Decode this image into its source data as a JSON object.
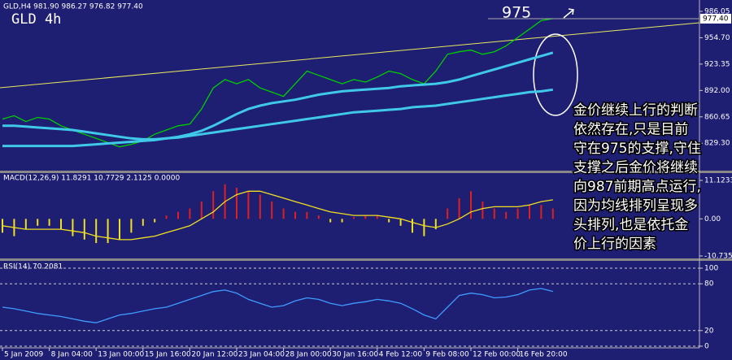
{
  "chart_data": [
    {
      "type": "line",
      "header": "GLD,H4  981.90 986.27 976.82 977.40",
      "title": "GLD 4h",
      "annotation": "975",
      "note_lines": [
        "金价继续上行的判断",
        "依然存在,只是目前",
        "守在975的支撑,守住",
        "支撑之后金价将继续",
        "向987前期高点运行,",
        "因为均线排列呈现多",
        "头排列,也是依托金",
        "价上行的因素"
      ],
      "ylim": [
        798.6,
        995.7
      ],
      "yticks": [
        986.05,
        {
          "value": 954.7,
          "label": "954.70"
        },
        923.35,
        {
          "value": 892,
          "label": "892.00"
        },
        860.65,
        {
          "value": 829.3,
          "label": "829.30"
        }
      ],
      "current_price": {
        "value": 977.4,
        "label": "977.40"
      },
      "grid": false,
      "series": [
        {
          "color": "#00d000",
          "values": [
            858,
            862,
            855,
            860,
            858,
            850,
            845,
            840,
            835,
            830,
            825,
            828,
            832,
            840,
            845,
            850,
            852,
            870,
            895,
            905,
            900,
            905,
            895,
            890,
            885,
            900,
            915,
            910,
            905,
            900,
            905,
            902,
            908,
            915,
            912,
            905,
            900,
            915,
            935,
            938,
            940,
            935,
            938,
            945,
            955,
            965,
            975,
            977.4
          ]
        },
        {
          "color": "#40c8e8",
          "values": [
            850,
            850,
            849,
            848,
            847,
            846,
            845,
            843,
            841,
            839,
            837,
            835,
            834,
            834,
            835,
            837,
            840,
            844,
            850,
            857,
            864,
            870,
            874,
            877,
            879,
            881,
            884,
            887,
            889,
            891,
            892,
            893,
            894,
            895,
            897,
            898,
            899,
            900,
            902,
            905,
            909,
            913,
            917,
            921,
            925,
            929,
            933,
            937
          ]
        },
        {
          "color": "#40c8e8",
          "values": [
            826,
            826,
            826,
            826,
            826,
            826,
            826,
            827,
            828,
            829,
            830,
            831,
            832,
            833,
            835,
            836,
            838,
            840,
            842,
            844,
            846,
            848,
            850,
            852,
            854,
            856,
            858,
            860,
            862,
            864,
            866,
            867,
            868,
            869,
            870,
            872,
            873,
            874,
            876,
            878,
            880,
            882,
            884,
            886,
            888,
            890,
            891,
            893
          ]
        }
      ]
    },
    {
      "type": "bar",
      "header": "MACD(12,26,9) 11.8291 10.7729 2.1125 0.0000",
      "ylim": [
        -10.7357,
        11.1233
      ],
      "yticks": [
        11.1233,
        {
          "value": 0,
          "label": "0.00"
        },
        -10.7357
      ],
      "positive_color": "#e02020",
      "negative_color": "#f0e020",
      "values": [
        -4,
        -5,
        -3,
        -2,
        -2,
        -3,
        -5,
        -6,
        -7,
        -7,
        -6,
        -4,
        -2,
        -1,
        1,
        2,
        3,
        5,
        8,
        10,
        9,
        8,
        7,
        5,
        3,
        2,
        2,
        1,
        -1,
        -1,
        0.5,
        1,
        1,
        -1,
        -2,
        -4,
        -5,
        -3,
        3,
        6,
        8,
        5,
        3,
        2,
        3,
        4,
        4,
        3
      ],
      "signal": {
        "color": "#f0e020",
        "values": [
          -2,
          -2.5,
          -3,
          -3,
          -3,
          -3,
          -3.5,
          -4,
          -5,
          -5.5,
          -6,
          -6,
          -5.5,
          -5,
          -4,
          -3,
          -2,
          0,
          2,
          5,
          7,
          8,
          8,
          7,
          6,
          5,
          4,
          3,
          2,
          1.5,
          1,
          1,
          1,
          0.5,
          0,
          -1,
          -2,
          -2.5,
          -1.5,
          0,
          2,
          3,
          3.5,
          3.5,
          3.5,
          4,
          5,
          5.5
        ]
      }
    },
    {
      "type": "line",
      "header": "RSI(14) 70.2081",
      "ylim": [
        0,
        100
      ],
      "yticks": [
        100,
        80,
        20,
        0
      ],
      "grid": true,
      "categories": [
        "5 Jan 2009",
        null,
        null,
        null,
        "8 Jan 04:00",
        null,
        null,
        null,
        "13 Jan 00:00",
        null,
        null,
        null,
        "15 Jan 16:00",
        null,
        null,
        null,
        "20 Jan 12:00",
        null,
        null,
        null,
        "23 Jan 04:00",
        null,
        null,
        null,
        "28 Jan 00:00",
        null,
        null,
        null,
        "30 Jan 16:00",
        null,
        null,
        null,
        "4 Feb 12:00",
        null,
        null,
        null,
        "9 Feb 08:00",
        null,
        null,
        null,
        "12 Feb 00:00",
        null,
        null,
        null,
        "16 Feb 20:00",
        null,
        null,
        null
      ],
      "series": [
        {
          "color": "#3f9cff",
          "values": [
            50,
            48,
            45,
            42,
            40,
            38,
            35,
            32,
            30,
            35,
            40,
            42,
            45,
            48,
            50,
            55,
            60,
            65,
            70,
            72,
            68,
            60,
            55,
            50,
            52,
            58,
            62,
            60,
            55,
            52,
            55,
            57,
            60,
            58,
            55,
            48,
            40,
            35,
            50,
            65,
            68,
            66,
            62,
            63,
            66,
            72,
            74,
            70.2081
          ]
        }
      ]
    }
  ]
}
